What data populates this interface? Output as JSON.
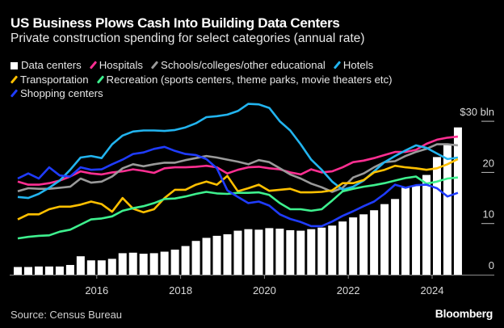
{
  "chart_data": {
    "type": "bar+line",
    "title": "US Business Plows Cash Into Building Data Centers",
    "subtitle": "Private construction spending for select categories (annual rate)",
    "x": [
      2014.0,
      2014.25,
      2014.5,
      2014.75,
      2015.0,
      2015.25,
      2015.5,
      2015.75,
      2016.0,
      2016.25,
      2016.5,
      2016.75,
      2017.0,
      2017.25,
      2017.5,
      2017.75,
      2018.0,
      2018.25,
      2018.5,
      2018.75,
      2019.0,
      2019.25,
      2019.5,
      2019.75,
      2020.0,
      2020.25,
      2020.5,
      2020.75,
      2021.0,
      2021.25,
      2021.5,
      2021.75,
      2022.0,
      2022.25,
      2022.5,
      2022.75,
      2023.0,
      2023.25,
      2023.5,
      2023.75,
      2024.0,
      2024.25,
      2024.5
    ],
    "x_ticks": [
      "2016",
      "2018",
      "2020",
      "2022",
      "2024"
    ],
    "y_ticks": [
      "0",
      "10",
      "20",
      "$30 bln"
    ],
    "y_tick_values": [
      0,
      10,
      20,
      30
    ],
    "ylim": [
      0,
      33
    ],
    "grid": false,
    "legend_position": "top",
    "series": [
      {
        "name": "Data centers",
        "kind": "bar",
        "color": "#ffffff",
        "values": [
          1.5,
          1.5,
          1.6,
          1.6,
          1.6,
          1.9,
          3.6,
          2.8,
          2.8,
          3.1,
          4.2,
          4.3,
          4.1,
          4.2,
          4.5,
          4.9,
          5.6,
          6.6,
          7.2,
          7.6,
          7.9,
          8.6,
          8.9,
          8.8,
          9.1,
          9.0,
          8.7,
          8.6,
          8.9,
          9.2,
          9.6,
          10.4,
          11.2,
          11.8,
          12.6,
          13.8,
          14.8,
          17.0,
          17.4,
          19.5,
          23.0,
          25.5,
          28.8
        ]
      },
      {
        "name": "Hospitals",
        "kind": "line",
        "color": "#ff2f92",
        "values": [
          18.2,
          17.6,
          17.6,
          17.9,
          18.4,
          19.2,
          20.2,
          19.8,
          19.6,
          20.0,
          20.2,
          20.6,
          20.3,
          19.9,
          20.8,
          21.0,
          21.0,
          21.1,
          21.3,
          21.0,
          19.8,
          20.5,
          21.0,
          21.1,
          20.8,
          20.6,
          20.0,
          19.6,
          20.6,
          20.0,
          20.2,
          21.0,
          22.0,
          22.3,
          22.8,
          23.4,
          24.0,
          24.0,
          24.4,
          25.6,
          26.4,
          26.8,
          27.0
        ]
      },
      {
        "name": "Schools/colleges/other educational",
        "kind": "line",
        "color": "#9a9a9a",
        "values": [
          16.3,
          16.9,
          16.8,
          16.8,
          17.0,
          17.2,
          18.8,
          18.0,
          18.2,
          19.2,
          20.8,
          21.6,
          21.2,
          21.6,
          21.9,
          21.9,
          22.4,
          22.8,
          23.2,
          22.9,
          22.5,
          22.1,
          21.6,
          22.4,
          22.0,
          20.8,
          19.6,
          18.8,
          17.8,
          17.1,
          16.2,
          17.0,
          19.0,
          19.8,
          21.0,
          22.0,
          22.2,
          23.2,
          24.0,
          24.6,
          25.5,
          25.5,
          25.3
        ]
      },
      {
        "name": "Hotels",
        "kind": "line",
        "color": "#22b4ef",
        "values": [
          15.2,
          15.0,
          15.8,
          17.0,
          18.4,
          20.5,
          22.9,
          23.2,
          22.8,
          25.5,
          27.2,
          28.0,
          28.2,
          28.2,
          28.1,
          28.3,
          28.8,
          29.6,
          30.8,
          31.0,
          31.3,
          32.0,
          33.4,
          33.3,
          32.6,
          30.0,
          28.2,
          25.5,
          22.5,
          20.5,
          18.2,
          16.6,
          17.2,
          18.4,
          20.2,
          22.0,
          23.2,
          24.3,
          25.3,
          24.8,
          23.7,
          22.6,
          22.9
        ]
      },
      {
        "name": "Transportation",
        "kind": "line",
        "color": "#ffc000",
        "values": [
          10.8,
          11.8,
          11.8,
          12.8,
          13.3,
          13.3,
          13.7,
          14.3,
          13.8,
          12.3,
          15.0,
          12.9,
          12.2,
          12.8,
          15.0,
          16.6,
          16.6,
          17.6,
          18.2,
          17.6,
          19.3,
          16.3,
          16.9,
          17.6,
          16.4,
          16.6,
          16.8,
          16.1,
          16.1,
          16.2,
          16.5,
          17.9,
          17.9,
          18.5,
          20.0,
          20.5,
          21.3,
          21.0,
          20.8,
          20.5,
          20.8,
          21.6,
          22.6
        ]
      },
      {
        "name": "Recreation (sports centers, theme parks, movie theaters etc)",
        "kind": "line",
        "color": "#3ef08e",
        "values": [
          7.1,
          7.4,
          7.6,
          7.7,
          8.4,
          8.8,
          9.8,
          10.8,
          11.0,
          11.4,
          12.5,
          13.0,
          13.4,
          14.0,
          14.8,
          14.9,
          15.3,
          15.8,
          16.2,
          15.9,
          15.8,
          16.0,
          16.0,
          16.1,
          15.6,
          14.0,
          12.8,
          12.8,
          12.5,
          12.8,
          14.5,
          16.3,
          16.8,
          17.2,
          17.5,
          17.9,
          18.4,
          18.9,
          19.2,
          17.8,
          18.2,
          18.8,
          19.0
        ]
      },
      {
        "name": "Shopping centers",
        "kind": "line",
        "color": "#1f3cff",
        "values": [
          18.8,
          19.8,
          18.8,
          21.0,
          19.4,
          19.2,
          21.0,
          20.5,
          20.6,
          21.6,
          22.5,
          23.6,
          23.9,
          24.6,
          25.0,
          24.2,
          23.6,
          23.4,
          22.6,
          20.8,
          16.5,
          15.2,
          14.0,
          14.3,
          13.5,
          11.8,
          10.9,
          10.3,
          9.5,
          9.5,
          10.4,
          11.5,
          12.4,
          13.4,
          14.3,
          15.8,
          17.6,
          17.0,
          17.5,
          17.6,
          16.9,
          15.3,
          16.0
        ]
      }
    ]
  },
  "footer": {
    "source": "Source: Census Bureau",
    "logo": "Bloomberg"
  }
}
